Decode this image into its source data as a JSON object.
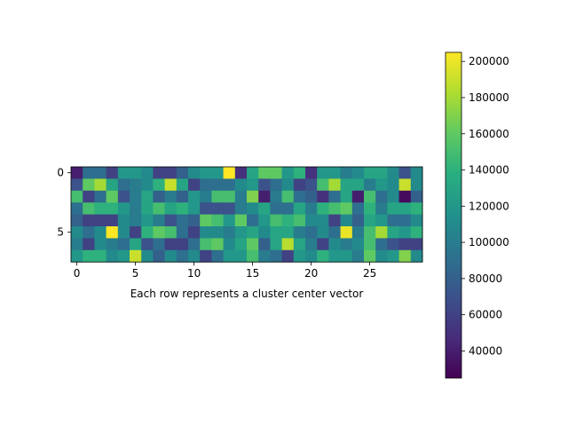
{
  "chart_data": {
    "type": "heatmap",
    "title": "",
    "xlabel": "Each row represents a cluster center vector",
    "ylabel": "",
    "x_ticks": [
      0,
      5,
      10,
      15,
      20,
      25
    ],
    "y_ticks": [
      0,
      5
    ],
    "rows": 8,
    "cols": 30,
    "colormap": "viridis",
    "value_range": [
      25000,
      205000
    ],
    "colorbar": {
      "ticks": [
        40000,
        60000,
        80000,
        100000,
        120000,
        140000,
        160000,
        180000,
        200000
      ],
      "tick_labels": [
        "40000",
        "60000",
        "80000",
        "100000",
        "120000",
        "140000",
        "160000",
        "180000",
        "200000"
      ],
      "placement": "right"
    },
    "values": [
      [
        40000,
        90000,
        90000,
        60000,
        120000,
        120000,
        110000,
        60000,
        60000,
        80000,
        110000,
        120000,
        120000,
        205000,
        50000,
        130000,
        160000,
        160000,
        120000,
        140000,
        50000,
        120000,
        120000,
        100000,
        110000,
        130000,
        130000,
        110000,
        70000,
        110000
      ],
      [
        70000,
        160000,
        180000,
        130000,
        90000,
        100000,
        110000,
        140000,
        190000,
        130000,
        60000,
        90000,
        90000,
        90000,
        110000,
        120000,
        70000,
        90000,
        110000,
        60000,
        70000,
        150000,
        180000,
        130000,
        130000,
        100000,
        120000,
        110000,
        190000,
        110000
      ],
      [
        150000,
        60000,
        90000,
        160000,
        70000,
        100000,
        130000,
        80000,
        100000,
        80000,
        120000,
        100000,
        150000,
        150000,
        100000,
        170000,
        40000,
        100000,
        150000,
        90000,
        80000,
        50000,
        90000,
        130000,
        40000,
        150000,
        90000,
        110000,
        30000,
        80000
      ],
      [
        90000,
        150000,
        140000,
        140000,
        120000,
        100000,
        130000,
        150000,
        130000,
        140000,
        120000,
        70000,
        70000,
        70000,
        100000,
        110000,
        130000,
        90000,
        90000,
        130000,
        100000,
        140000,
        150000,
        160000,
        90000,
        140000,
        100000,
        130000,
        130000,
        140000
      ],
      [
        80000,
        60000,
        60000,
        60000,
        110000,
        100000,
        120000,
        100000,
        70000,
        90000,
        80000,
        160000,
        150000,
        120000,
        160000,
        90000,
        120000,
        150000,
        140000,
        150000,
        110000,
        110000,
        60000,
        110000,
        80000,
        130000,
        120000,
        90000,
        90000,
        110000
      ],
      [
        110000,
        90000,
        110000,
        205000,
        110000,
        60000,
        140000,
        160000,
        150000,
        90000,
        60000,
        110000,
        110000,
        100000,
        120000,
        130000,
        110000,
        130000,
        130000,
        100000,
        90000,
        110000,
        90000,
        200000,
        100000,
        150000,
        180000,
        130000,
        120000,
        140000
      ],
      [
        100000,
        60000,
        110000,
        100000,
        90000,
        130000,
        70000,
        90000,
        60000,
        60000,
        90000,
        150000,
        160000,
        110000,
        130000,
        160000,
        80000,
        130000,
        185000,
        130000,
        100000,
        60000,
        110000,
        100000,
        110000,
        150000,
        90000,
        70000,
        60000,
        60000
      ],
      [
        120000,
        140000,
        140000,
        110000,
        120000,
        190000,
        110000,
        80000,
        110000,
        90000,
        110000,
        60000,
        90000,
        120000,
        120000,
        150000,
        100000,
        90000,
        60000,
        120000,
        110000,
        140000,
        120000,
        120000,
        100000,
        160000,
        110000,
        120000,
        170000,
        110000
      ]
    ]
  }
}
